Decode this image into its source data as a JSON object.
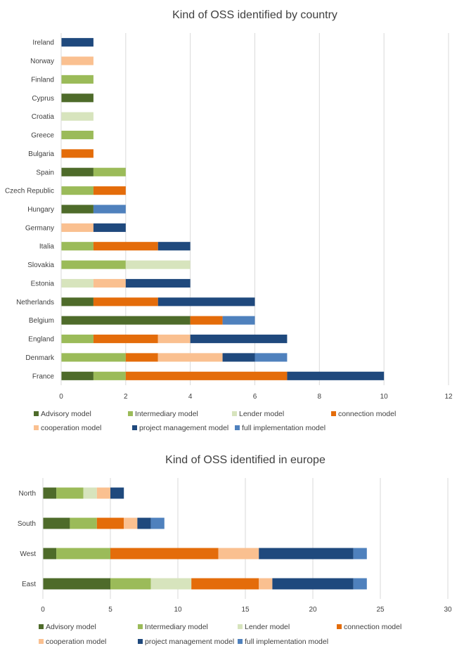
{
  "colors": {
    "Advisory model": "#4e6b2a",
    "Intermediary model": "#9bbb59",
    "Lender model": "#d7e4bd",
    "connection model": "#e46c0a",
    "cooperation model": "#fac090",
    "project management model": "#1f497d",
    "full implementation model": "#4f81bd"
  },
  "chart_data": [
    {
      "type": "bar",
      "orientation": "horizontal",
      "stacked": true,
      "title": "Kind of OSS identified by country",
      "xlim": [
        0,
        12
      ],
      "xticks": [
        "0",
        "2",
        "4",
        "6",
        "8",
        "10",
        "12"
      ],
      "xtick_values": [
        0,
        2,
        4,
        6,
        8,
        10,
        12
      ],
      "categories": [
        "Ireland",
        "Norway",
        "Finland",
        "Cyprus",
        "Croatia",
        "Greece",
        "Bulgaria",
        "Spain",
        "Czech Republic",
        "Hungary",
        "Germany",
        "Italia",
        "Slovakia",
        "Estonia",
        "Netherlands",
        "Belgium",
        "England",
        "Denmark",
        "France"
      ],
      "series": [
        {
          "name": "Advisory model",
          "values": [
            0,
            0,
            0,
            1,
            0,
            0,
            0,
            1,
            0,
            1,
            0,
            0,
            0,
            0,
            1,
            4,
            0,
            0,
            1
          ]
        },
        {
          "name": "Intermediary model",
          "values": [
            0,
            0,
            1,
            0,
            0,
            1,
            0,
            1,
            1,
            0,
            0,
            1,
            2,
            0,
            0,
            0,
            1,
            2,
            1
          ]
        },
        {
          "name": "Lender model",
          "values": [
            0,
            0,
            0,
            0,
            1,
            0,
            0,
            0,
            0,
            0,
            0,
            0,
            2,
            1,
            0,
            0,
            0,
            0,
            0
          ]
        },
        {
          "name": "connection model",
          "values": [
            0,
            0,
            0,
            0,
            0,
            0,
            1,
            0,
            1,
            0,
            0,
            2,
            0,
            0,
            2,
            1,
            2,
            1,
            5
          ]
        },
        {
          "name": "cooperation model",
          "values": [
            0,
            1,
            0,
            0,
            0,
            0,
            0,
            0,
            0,
            0,
            1,
            0,
            0,
            1,
            0,
            0,
            1,
            2,
            0
          ]
        },
        {
          "name": "project management model",
          "values": [
            1,
            0,
            0,
            0,
            0,
            0,
            0,
            0,
            0,
            0,
            1,
            1,
            0,
            2,
            3,
            0,
            3,
            1,
            3
          ]
        },
        {
          "name": "full implementation model",
          "values": [
            0,
            0,
            0,
            0,
            0,
            0,
            0,
            0,
            0,
            1,
            0,
            0,
            0,
            0,
            0,
            1,
            0,
            1,
            0
          ]
        }
      ],
      "legend": [
        "Advisory model",
        "Intermediary model",
        "Lender model",
        "connection model",
        "cooperation model",
        "project management model",
        "full implementation model"
      ],
      "legend_position": "bottom"
    },
    {
      "type": "bar",
      "orientation": "horizontal",
      "stacked": true,
      "title": "Kind of OSS identified in europe",
      "xlim": [
        0,
        30
      ],
      "xticks": [
        "0",
        "5",
        "10",
        "15",
        "20",
        "25",
        "30"
      ],
      "xtick_values": [
        0,
        5,
        10,
        15,
        20,
        25,
        30
      ],
      "categories": [
        "North",
        "South",
        "West",
        "East"
      ],
      "series": [
        {
          "name": "Advisory model",
          "values": [
            1,
            2,
            1,
            5
          ]
        },
        {
          "name": "Intermediary model",
          "values": [
            2,
            2,
            4,
            3
          ]
        },
        {
          "name": "Lender model",
          "values": [
            1,
            0,
            0,
            3
          ]
        },
        {
          "name": "connection model",
          "values": [
            0,
            2,
            8,
            5
          ]
        },
        {
          "name": "cooperation model",
          "values": [
            1,
            1,
            3,
            1
          ]
        },
        {
          "name": "project management model",
          "values": [
            1,
            1,
            7,
            6
          ]
        },
        {
          "name": "full implementation model",
          "values": [
            0,
            1,
            1,
            1
          ]
        }
      ],
      "legend": [
        "Advisory model",
        "Intermediary model",
        "Lender model",
        "connection model",
        "cooperation model",
        "project management model",
        "full implementation model"
      ],
      "legend_position": "bottom"
    }
  ]
}
